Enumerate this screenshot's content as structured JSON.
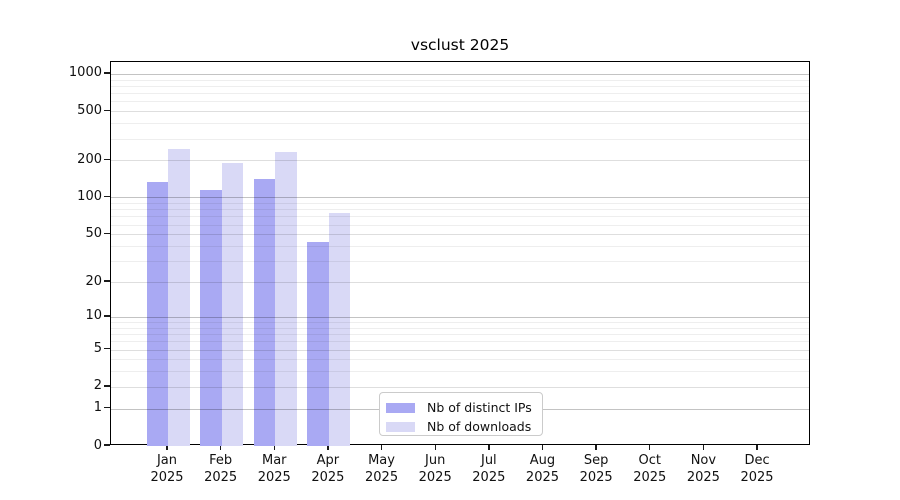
{
  "chart_data": {
    "type": "bar",
    "title": "vsclust 2025",
    "y_scale": "log(1+x)",
    "categories": [
      "Jan",
      "Feb",
      "Mar",
      "Apr",
      "May",
      "Jun",
      "Jul",
      "Aug",
      "Sep",
      "Oct",
      "Nov",
      "Dec"
    ],
    "x_year_label": "2025",
    "series": [
      {
        "key": "distinct-ips",
        "name": "Nb of distinct IPs",
        "color": "#a9a9f3",
        "values": [
          134,
          116,
          142,
          43,
          null,
          null,
          null,
          null,
          null,
          null,
          null,
          null
        ]
      },
      {
        "key": "downloads",
        "name": "Nb of downloads",
        "color": "#d9d9f6",
        "values": [
          246,
          190,
          234,
          75,
          null,
          null,
          null,
          null,
          null,
          null,
          null,
          null
        ]
      }
    ],
    "y_ticks": [
      0,
      1,
      2,
      5,
      10,
      20,
      50,
      100,
      200,
      500,
      1000
    ],
    "y_minor_ticks": [
      3,
      4,
      6,
      7,
      8,
      9,
      30,
      40,
      60,
      70,
      80,
      90,
      300,
      400,
      600,
      700,
      800,
      900
    ],
    "ylim": [
      0,
      1250
    ],
    "grid": true,
    "legend_position": "lower center"
  },
  "colors": {
    "background": "#ffffff",
    "axis": "#000000",
    "text": "#111111",
    "grid_decade": "#c3c3c3",
    "grid_labeled": "#dedede",
    "grid_minor": "#eeeeee",
    "legend_border": "#cbcbcb"
  }
}
